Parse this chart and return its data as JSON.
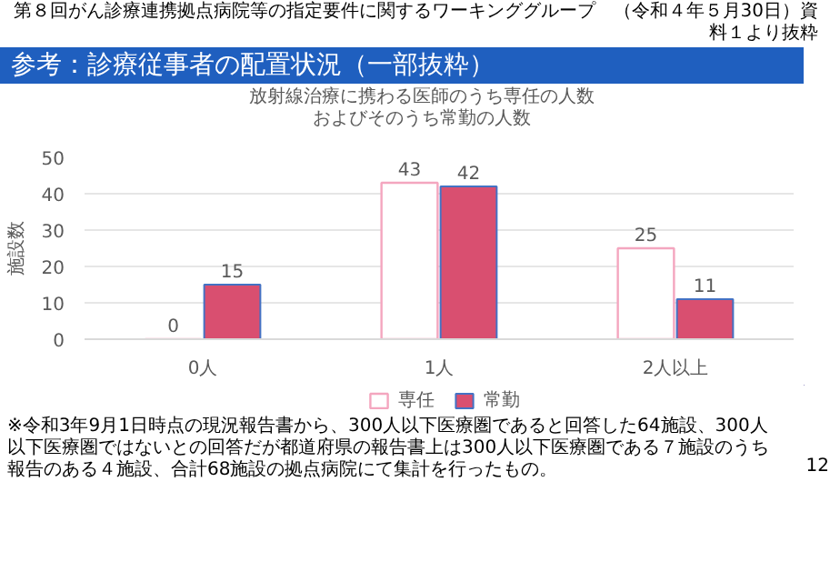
{
  "chart_data": {
    "type": "bar",
    "title": "参考：診療従事者の配置状況（一部抜粋）",
    "subtitle": "放射線治療に携わる医師のうち専任の人数およびそのうち常勤の人数",
    "ylabel": "施設数",
    "categories": [
      "0人",
      "1人",
      "2人以上"
    ],
    "series": [
      {
        "name": "専任",
        "color": "#f4a6bf",
        "values": [
          0,
          43,
          25
        ]
      },
      {
        "name": "常勤",
        "color": "#d94f70",
        "values": [
          15,
          42,
          11
        ]
      }
    ],
    "ylim": [
      0,
      50
    ],
    "yticks": [
      0,
      10,
      20,
      30,
      40,
      50
    ],
    "grid": "y",
    "legend": "bottom",
    "data_labels": true,
    "annotations": [
      "第８回がん診療連携拠点病院等の指定要件に関するワーキンググループ　（令和４年５月30日）資料１より抜粋",
      "※令和3年9月1日時点の現況報告書から、300人以下医療圏であると回答した64施設、300人以下医療圏ではないとの回答だが都道府県の報告書上は300人以下医療圏である７施設のうち報告のある４施設、合計68施設の拠点病院にて集計を行ったもの。",
      "12"
    ]
  }
}
